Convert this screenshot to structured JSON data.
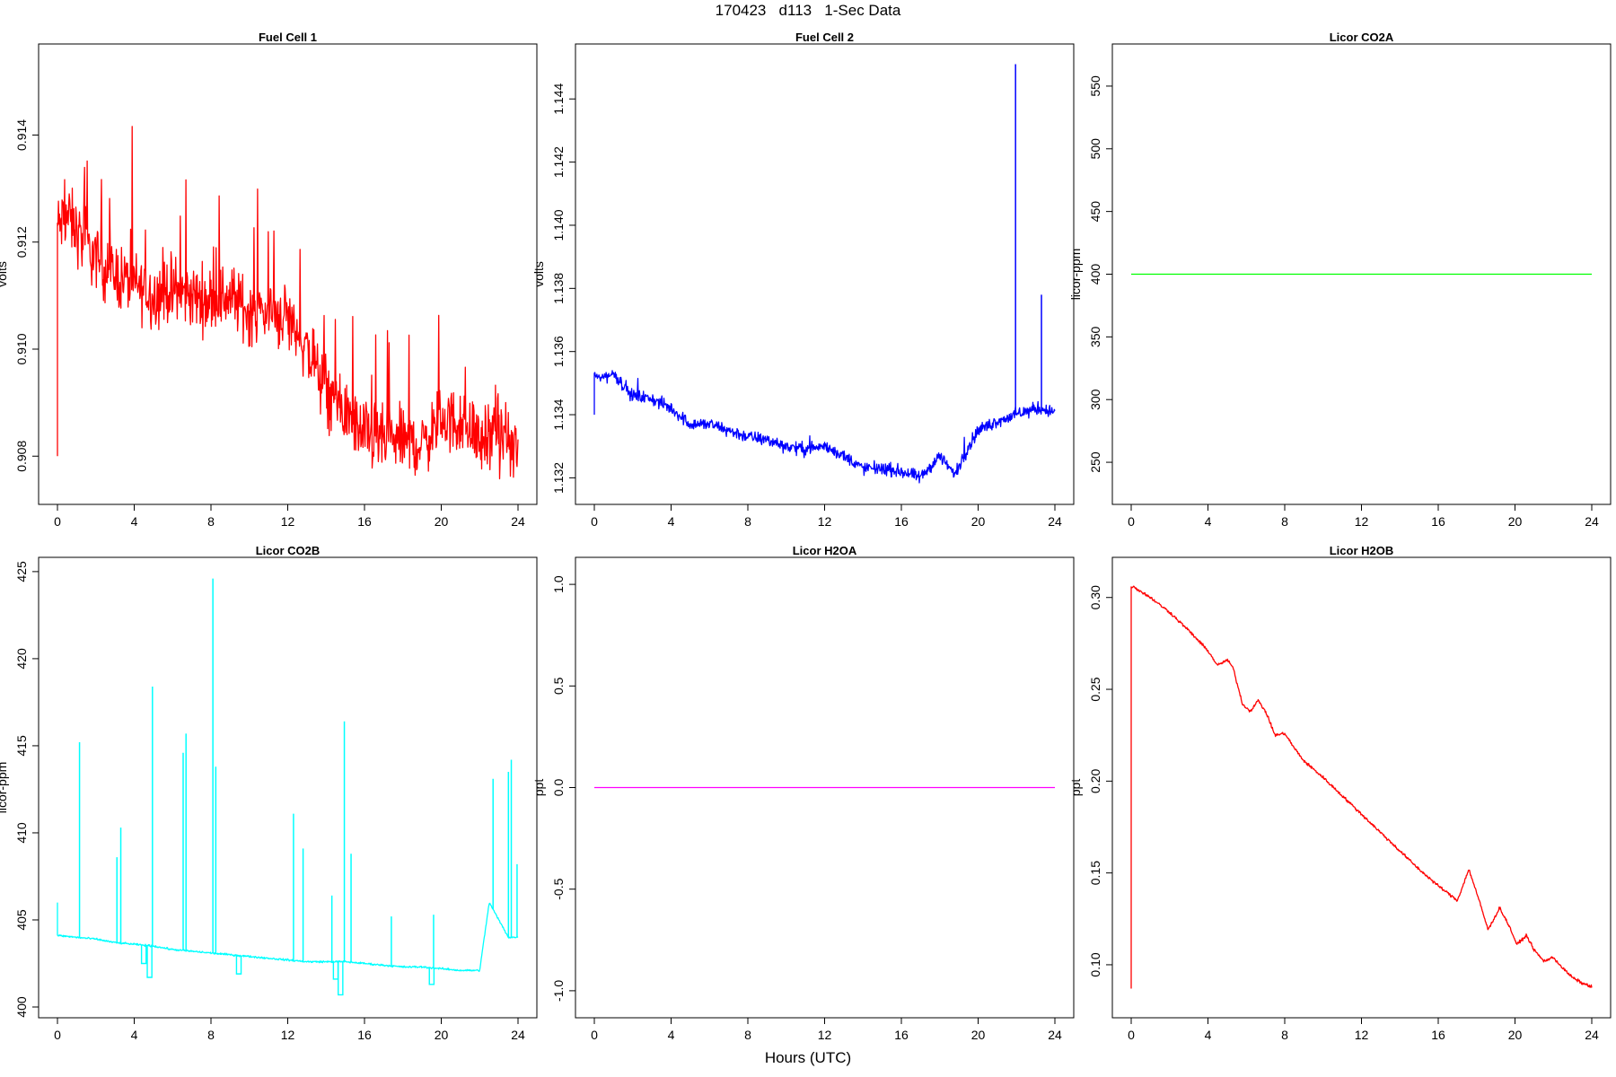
{
  "page": {
    "title": "170423   d113   1-Sec Data",
    "xlabel": "Hours (UTC)"
  },
  "colors": {
    "fuel_cell_1": "#ff0000",
    "fuel_cell_2": "#0000ff",
    "licor_co2a": "#00ff00",
    "licor_co2b": "#00ffff",
    "licor_h2oa": "#ff00ff",
    "licor_h2ob": "#ff0000"
  },
  "chart_data": [
    {
      "type": "line",
      "title": "Fuel Cell 1",
      "ylabel": "volts",
      "xlim": [
        0,
        24
      ],
      "ylim": [
        0.9073,
        0.9155
      ],
      "xticks": [
        0,
        4,
        8,
        12,
        16,
        20,
        24
      ],
      "yticks": [
        "0.908",
        "0.910",
        "0.912",
        "0.914"
      ],
      "ytick_values": [
        0.908,
        0.91,
        0.912,
        0.914
      ],
      "color": "#ff0000",
      "grid": false,
      "noise": 0.0009,
      "spike_rate": 0.06,
      "spike_amp": 0.0022,
      "series": [
        {
          "x": [
            0,
            0.1,
            0.5,
            1,
            2,
            3,
            4,
            5,
            6,
            7,
            8,
            9,
            10,
            11,
            12,
            13,
            14,
            15,
            16,
            17,
            18,
            19,
            20,
            21,
            22,
            23,
            24
          ],
          "y": [
            0.908,
            0.9123,
            0.9125,
            0.9122,
            0.9117,
            0.9114,
            0.9112,
            0.911,
            0.9111,
            0.911,
            0.9109,
            0.911,
            0.9107,
            0.9107,
            0.9106,
            0.91,
            0.9092,
            0.9088,
            0.9084,
            0.9083,
            0.9083,
            0.9082,
            0.9087,
            0.9086,
            0.9083,
            0.9083,
            0.9081
          ]
        }
      ]
    },
    {
      "type": "line",
      "title": "Fuel Cell 2",
      "ylabel": "volts",
      "xlim": [
        0,
        24
      ],
      "ylim": [
        1.1315,
        1.1454
      ],
      "xticks": [
        0,
        4,
        8,
        12,
        16,
        20,
        24
      ],
      "yticks": [
        "1.132",
        "1.134",
        "1.136",
        "1.138",
        "1.140",
        "1.142",
        "1.144"
      ],
      "ytick_values": [
        1.132,
        1.134,
        1.136,
        1.138,
        1.14,
        1.142,
        1.144
      ],
      "color": "#0000ff",
      "grid": false,
      "noise": 0.0003,
      "spike_rate": 0.004,
      "spike_amp": 0.0008,
      "series": [
        {
          "x": [
            0,
            0.1,
            0.5,
            1,
            2,
            3,
            4,
            5,
            6,
            7,
            8,
            9,
            10,
            11,
            12,
            13,
            14,
            15,
            16,
            17,
            18,
            18.8,
            19.5,
            20,
            21,
            22,
            23,
            24
          ],
          "y": [
            1.134,
            1.1352,
            1.1352,
            1.1353,
            1.1346,
            1.1345,
            1.1342,
            1.1337,
            1.1337,
            1.1335,
            1.1333,
            1.1332,
            1.133,
            1.1329,
            1.133,
            1.1327,
            1.1323,
            1.1323,
            1.1322,
            1.132,
            1.1327,
            1.1321,
            1.133,
            1.1335,
            1.1338,
            1.134,
            1.1342,
            1.1341
          ]
        }
      ],
      "spikes": [
        {
          "x": 21.95,
          "y": 1.1451
        },
        {
          "x": 23.3,
          "y": 1.1378
        }
      ]
    },
    {
      "type": "line",
      "title": "Licor CO2A",
      "ylabel": "licor-ppm",
      "xlim": [
        0,
        24
      ],
      "ylim": [
        225,
        575
      ],
      "xticks": [
        0,
        4,
        8,
        12,
        16,
        20,
        24
      ],
      "yticks": [
        "250",
        "300",
        "350",
        "400",
        "450",
        "500",
        "550"
      ],
      "ytick_values": [
        250,
        300,
        350,
        400,
        450,
        500,
        550
      ],
      "color": "#00ff00",
      "grid": false,
      "noise": 0,
      "series": [
        {
          "x": [
            0,
            24
          ],
          "y": [
            400,
            400
          ]
        }
      ]
    },
    {
      "type": "line",
      "title": "Licor CO2B",
      "ylabel": "licor-ppm",
      "xlim": [
        0,
        24
      ],
      "ylim": [
        400,
        425.2
      ],
      "xticks": [
        0,
        4,
        8,
        12,
        16,
        20,
        24
      ],
      "yticks": [
        "400",
        "405",
        "410",
        "415",
        "420",
        "425"
      ],
      "ytick_values": [
        400,
        405,
        410,
        415,
        420,
        425
      ],
      "color": "#00ffff",
      "grid": false,
      "noise": 0.08,
      "series": [
        {
          "x": [
            0,
            0.1,
            1,
            2,
            3,
            4,
            5,
            6,
            7,
            8,
            9,
            10,
            11,
            12,
            13,
            14,
            15,
            16,
            17,
            18,
            19,
            20,
            21,
            22,
            22.5,
            23,
            23.5,
            24
          ],
          "y": [
            406,
            404.1,
            404.0,
            403.9,
            403.7,
            403.6,
            403.5,
            403.3,
            403.2,
            403.1,
            403.0,
            402.9,
            402.8,
            402.7,
            402.6,
            402.6,
            402.6,
            402.5,
            402.4,
            402.3,
            402.3,
            402.2,
            402.1,
            402.1,
            406,
            405,
            404,
            404
          ]
        }
      ],
      "spikes": [
        {
          "x": 1.15,
          "y": 415.2
        },
        {
          "x": 3.1,
          "y": 408.6
        },
        {
          "x": 3.3,
          "y": 410.3
        },
        {
          "x": 4.95,
          "y": 418.4
        },
        {
          "x": 6.55,
          "y": 414.6
        },
        {
          "x": 6.7,
          "y": 415.7
        },
        {
          "x": 8.1,
          "y": 424.6
        },
        {
          "x": 8.25,
          "y": 413.8
        },
        {
          "x": 12.3,
          "y": 411.1
        },
        {
          "x": 12.8,
          "y": 409.1
        },
        {
          "x": 14.3,
          "y": 406.4
        },
        {
          "x": 14.95,
          "y": 416.4
        },
        {
          "x": 15.3,
          "y": 408.8
        },
        {
          "x": 17.4,
          "y": 405.2
        },
        {
          "x": 19.6,
          "y": 405.3
        },
        {
          "x": 22.7,
          "y": 413.1
        },
        {
          "x": 23.5,
          "y": 413.5
        },
        {
          "x": 23.65,
          "y": 414.2
        },
        {
          "x": 23.95,
          "y": 408.2
        }
      ],
      "dips": [
        {
          "x": 4.5,
          "y": 402.5
        },
        {
          "x": 4.8,
          "y": 401.7
        },
        {
          "x": 9.45,
          "y": 401.9
        },
        {
          "x": 14.5,
          "y": 401.6
        },
        {
          "x": 14.75,
          "y": 400.7
        },
        {
          "x": 19.5,
          "y": 401.3
        }
      ]
    },
    {
      "type": "line",
      "title": "Licor H2OA",
      "ylabel": "ppt",
      "xlim": [
        0,
        24
      ],
      "ylim": [
        -1.08,
        1.08
      ],
      "xticks": [
        0,
        4,
        8,
        12,
        16,
        20,
        24
      ],
      "yticks": [
        "-1.0",
        "-0.5",
        "0.0",
        "0.5",
        "1.0"
      ],
      "ytick_values": [
        -1.0,
        -0.5,
        0.0,
        0.5,
        1.0
      ],
      "color": "#ff00ff",
      "grid": false,
      "noise": 0,
      "series": [
        {
          "x": [
            0,
            24
          ],
          "y": [
            0,
            0
          ]
        }
      ]
    },
    {
      "type": "line",
      "title": "Licor H2OB",
      "ylabel": "ppt",
      "xlim": [
        0,
        24
      ],
      "ylim": [
        0.077,
        0.316
      ],
      "xticks": [
        0,
        4,
        8,
        12,
        16,
        20,
        24
      ],
      "yticks": [
        "0.10",
        "0.15",
        "0.20",
        "0.25",
        "0.30"
      ],
      "ytick_values": [
        0.1,
        0.15,
        0.2,
        0.25,
        0.3
      ],
      "color": "#ff0000",
      "grid": false,
      "noise": 0.0012,
      "series": [
        {
          "x": [
            0,
            0.02,
            0.1,
            1,
            2,
            3,
            4,
            4.5,
            5,
            5.3,
            5.8,
            6.2,
            6.6,
            7,
            7.5,
            8,
            8.5,
            9,
            10,
            11,
            12,
            13,
            14,
            15,
            16,
            17,
            17.6,
            18.1,
            18.6,
            19.2,
            19.7,
            20.1,
            20.6,
            21,
            21.5,
            22,
            22.5,
            23,
            23.5,
            24
          ],
          "y": [
            0.087,
            0.306,
            0.306,
            0.3,
            0.292,
            0.282,
            0.271,
            0.263,
            0.266,
            0.262,
            0.242,
            0.238,
            0.244,
            0.238,
            0.225,
            0.226,
            0.218,
            0.211,
            0.202,
            0.192,
            0.182,
            0.172,
            0.162,
            0.152,
            0.143,
            0.135,
            0.152,
            0.136,
            0.119,
            0.131,
            0.121,
            0.111,
            0.116,
            0.108,
            0.102,
            0.104,
            0.098,
            0.093,
            0.09,
            0.088
          ]
        }
      ]
    }
  ]
}
